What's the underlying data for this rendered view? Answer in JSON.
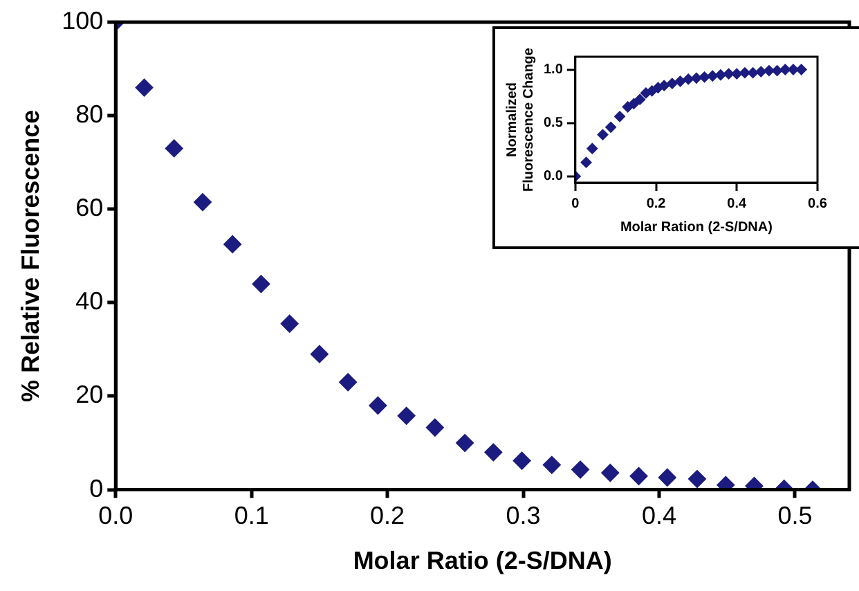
{
  "chart_data": [
    {
      "type": "scatter",
      "xlabel": "Molar Ratio (2-S/DNA)",
      "ylabel": "% Relative Fluorescence",
      "marker": "diamond",
      "grid": false,
      "legend": false,
      "xlim": [
        0,
        0.54
      ],
      "xticks": [
        {
          "value": 0,
          "label": "0.0"
        },
        0.1,
        0.2,
        0.3,
        0.4,
        0.5
      ],
      "ylim": [
        0,
        100
      ],
      "yticks": [
        0,
        20,
        40,
        60,
        80,
        100
      ],
      "series": [
        {
          "color": "#1c1c80",
          "x": [
            0,
            0.021,
            0.043,
            0.064,
            0.086,
            0.107,
            0.128,
            0.15,
            0.171,
            0.193,
            0.214,
            0.235,
            0.257,
            0.278,
            0.299,
            0.321,
            0.342,
            0.364,
            0.385,
            0.406,
            0.428,
            0.449,
            0.47,
            0.492,
            0.513
          ],
          "values": [
            100,
            86,
            73,
            61.5,
            52.5,
            44,
            35.5,
            29,
            23,
            18,
            15.8,
            13.3,
            10,
            8,
            6.2,
            5.3,
            4.3,
            3.6,
            2.9,
            2.6,
            2.3,
            1,
            0.8,
            0.2,
            0
          ]
        }
      ]
    },
    {
      "type": "scatter",
      "xlabel": "Molar Ration (2-S/DNA)",
      "ylabel": "Normalized Fluorescence Change",
      "marker": "diamond",
      "grid": false,
      "legend": false,
      "xlim": [
        0,
        0.6
      ],
      "xticks": [
        0,
        0.2,
        0.4,
        0.6
      ],
      "ylim": [
        -0.06,
        1.12
      ],
      "yticks": [
        {
          "value": 0,
          "label": "0.0"
        },
        0.5,
        {
          "value": 1,
          "label": "1.0"
        }
      ],
      "series": [
        {
          "color": "#1c1c80",
          "x": [
            0,
            0.027,
            0.042,
            0.068,
            0.088,
            0.11,
            0.13,
            0.145,
            0.16,
            0.175,
            0.19,
            0.205,
            0.22,
            0.24,
            0.26,
            0.28,
            0.3,
            0.32,
            0.34,
            0.36,
            0.38,
            0.4,
            0.42,
            0.44,
            0.46,
            0.48,
            0.5,
            0.52,
            0.54,
            0.56
          ],
          "values": [
            0,
            0.13,
            0.26,
            0.39,
            0.46,
            0.56,
            0.65,
            0.68,
            0.72,
            0.78,
            0.8,
            0.83,
            0.85,
            0.87,
            0.89,
            0.91,
            0.92,
            0.93,
            0.94,
            0.95,
            0.96,
            0.96,
            0.97,
            0.97,
            0.98,
            0.99,
            0.99,
            1,
            1,
            1
          ]
        }
      ]
    }
  ]
}
